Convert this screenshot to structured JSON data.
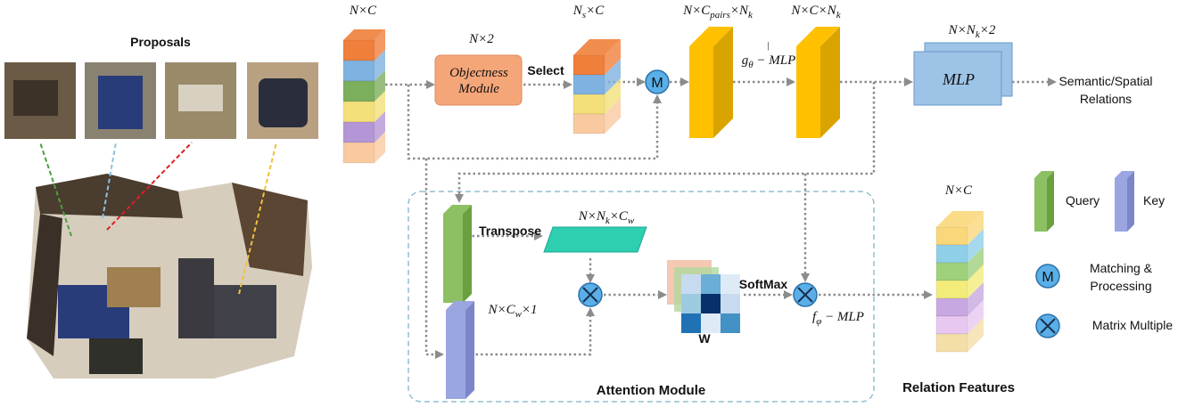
{
  "proposals_title": "Proposals",
  "dims": {
    "input": [
      "N×C"
    ],
    "objectness": [
      "N×2"
    ],
    "selected": [
      "N",
      "s",
      "×C"
    ],
    "pairs": [
      "N×C",
      "pairs",
      "×N",
      "k"
    ],
    "features": [
      "N×C×N",
      "k"
    ],
    "mlp_out": [
      "N×N",
      "k",
      "×2"
    ],
    "transposed": [
      "N×N",
      "k",
      "×C",
      "w"
    ],
    "key": [
      "N×C",
      "w",
      "×1"
    ],
    "relation": [
      "N×C"
    ]
  },
  "g_mlp": [
    "g",
    "θ",
    " − MLP"
  ],
  "f_mlp": [
    "f",
    "φ",
    " − MLP"
  ],
  "objectness_module": [
    "Objectness",
    "Module"
  ],
  "select": "Select",
  "mlp": "MLP",
  "output": [
    "Semantic/Spatial",
    "Relations"
  ],
  "transpose": "Transpose",
  "softmax": "SoftMax",
  "w": "W",
  "match_symbol": "M",
  "attention_module": "Attention Module",
  "relation_features": "Relation Features",
  "legend": {
    "query": "Query",
    "key": "Key",
    "matching": [
      "Matching &",
      "Processing"
    ],
    "matrix": "Matrix Multiple"
  }
}
